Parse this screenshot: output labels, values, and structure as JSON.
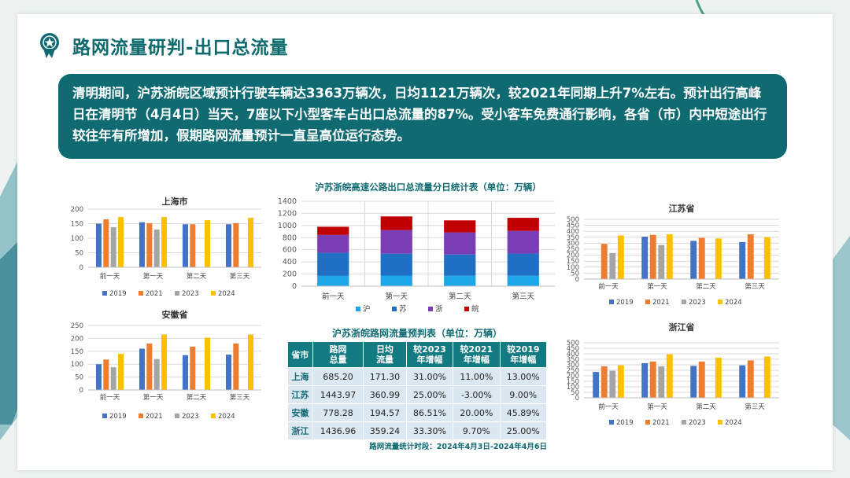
{
  "title": "路网流量研判-出口总流量",
  "summary": "清明期间，沪苏浙皖区域预计行驶车辆达3363万辆次，日均1121万辆次，较2021年同期上升7%左右。预计出行高峰日在清明节（4月4日）当天，7座以下小型客车占出口总流量的87%。受小客车免费通行影响，各省（市）内中短途出行较往年有所增加，假期路网流量预计一直呈高位运行态势。",
  "colors": {
    "2019": "#4472c4",
    "2021": "#ed7d31",
    "2023": "#a5a5a5",
    "2024": "#ffc000",
    "沪": "#1ea7e8",
    "苏": "#1f6fc4",
    "浙": "#7a3db3",
    "皖": "#c00000",
    "accent": "#0f6a72"
  },
  "chart_data": [
    {
      "id": "shanghai",
      "type": "bar",
      "title": "上海市",
      "categories": [
        "前一天",
        "第一天",
        "第二天",
        "第三天"
      ],
      "ylim": [
        0,
        200
      ],
      "yticks": [
        0,
        50,
        100,
        150,
        200
      ],
      "legend": "bottom",
      "grid": true,
      "series": [
        {
          "name": "2019",
          "values": [
            150,
            155,
            148,
            148
          ]
        },
        {
          "name": "2021",
          "values": [
            165,
            152,
            148,
            152
          ]
        },
        {
          "name": "2023",
          "values": [
            138,
            130,
            0,
            0
          ]
        },
        {
          "name": "2024",
          "values": [
            173,
            173,
            162,
            170
          ]
        }
      ]
    },
    {
      "id": "anhui",
      "type": "bar",
      "title": "安徽省",
      "categories": [
        "前一天",
        "第一天",
        "第二天",
        "第三天"
      ],
      "ylim": [
        0,
        250
      ],
      "yticks": [
        0,
        50,
        100,
        150,
        200,
        250
      ],
      "legend": "bottom",
      "grid": true,
      "series": [
        {
          "name": "2019",
          "values": [
            100,
            160,
            135,
            137
          ]
        },
        {
          "name": "2021",
          "values": [
            118,
            180,
            168,
            180
          ]
        },
        {
          "name": "2023",
          "values": [
            88,
            120,
            0,
            0
          ]
        },
        {
          "name": "2024",
          "values": [
            140,
            215,
            203,
            215
          ]
        }
      ]
    },
    {
      "id": "jiangsu",
      "type": "bar",
      "title": "江苏省",
      "categories": [
        "前一天",
        "第一天",
        "第二天",
        "第三天"
      ],
      "ylim": [
        0,
        500
      ],
      "yticks": [
        0,
        50,
        100,
        150,
        200,
        250,
        300,
        350,
        400,
        450,
        500
      ],
      "legend": "bottom",
      "grid": true,
      "series": [
        {
          "name": "2019",
          "values": [
            0,
            355,
            320,
            310
          ]
        },
        {
          "name": "2021",
          "values": [
            295,
            370,
            345,
            375
          ]
        },
        {
          "name": "2023",
          "values": [
            218,
            285,
            0,
            0
          ]
        },
        {
          "name": "2024",
          "values": [
            365,
            375,
            340,
            350
          ]
        }
      ]
    },
    {
      "id": "zhejiang",
      "type": "bar",
      "title": "浙江省",
      "categories": [
        "前一天",
        "第一天",
        "第二天",
        "第三天"
      ],
      "ylim": [
        0,
        500
      ],
      "yticks": [
        0,
        50,
        100,
        150,
        200,
        250,
        300,
        350,
        400,
        450,
        500
      ],
      "legend": "bottom",
      "grid": true,
      "series": [
        {
          "name": "2019",
          "values": [
            235,
            315,
            290,
            295
          ]
        },
        {
          "name": "2021",
          "values": [
            285,
            330,
            330,
            340
          ]
        },
        {
          "name": "2023",
          "values": [
            245,
            285,
            0,
            0
          ]
        },
        {
          "name": "2024",
          "values": [
            295,
            395,
            365,
            375
          ]
        }
      ]
    },
    {
      "id": "total",
      "type": "bar",
      "stacked": true,
      "title": "沪苏浙皖高速公路出口总流量分日统计表（单位：万辆）",
      "categories": [
        "前一天",
        "第一天",
        "第二天",
        "第三天"
      ],
      "ylim": [
        0,
        1400
      ],
      "yticks": [
        0,
        200,
        400,
        600,
        800,
        1000,
        1200,
        1400
      ],
      "legend": "bottom",
      "grid": true,
      "series": [
        {
          "name": "沪",
          "values": [
            170,
            175,
            172,
            172
          ]
        },
        {
          "name": "苏",
          "values": [
            380,
            360,
            350,
            365
          ]
        },
        {
          "name": "浙",
          "values": [
            295,
            390,
            365,
            375
          ]
        },
        {
          "name": "皖",
          "values": [
            135,
            225,
            198,
            215
          ]
        }
      ]
    }
  ],
  "forecast_table": {
    "title": "沪苏浙皖路网流量预判表（单位：万辆）",
    "headers": [
      [
        "省市"
      ],
      [
        "路网",
        "总量"
      ],
      [
        "日均",
        "流量"
      ],
      [
        "较2023",
        "年增幅"
      ],
      [
        "较2021",
        "年增幅"
      ],
      [
        "较2019",
        "年增幅"
      ]
    ],
    "rows": [
      [
        "上海",
        "685.20",
        "171.30",
        "31.00%",
        "11.00%",
        "13.00%"
      ],
      [
        "江苏",
        "1443.97",
        "360.99",
        "25.00%",
        "-3.00%",
        "9.00%"
      ],
      [
        "安徽",
        "778.28",
        "194.57",
        "86.51%",
        "20.00%",
        "45.89%"
      ],
      [
        "浙江",
        "1436.96",
        "359.24",
        "33.30%",
        "9.70%",
        "25.00%"
      ]
    ],
    "note": "路网流量统计时段：2024年4月3日-2024年4月6日"
  }
}
